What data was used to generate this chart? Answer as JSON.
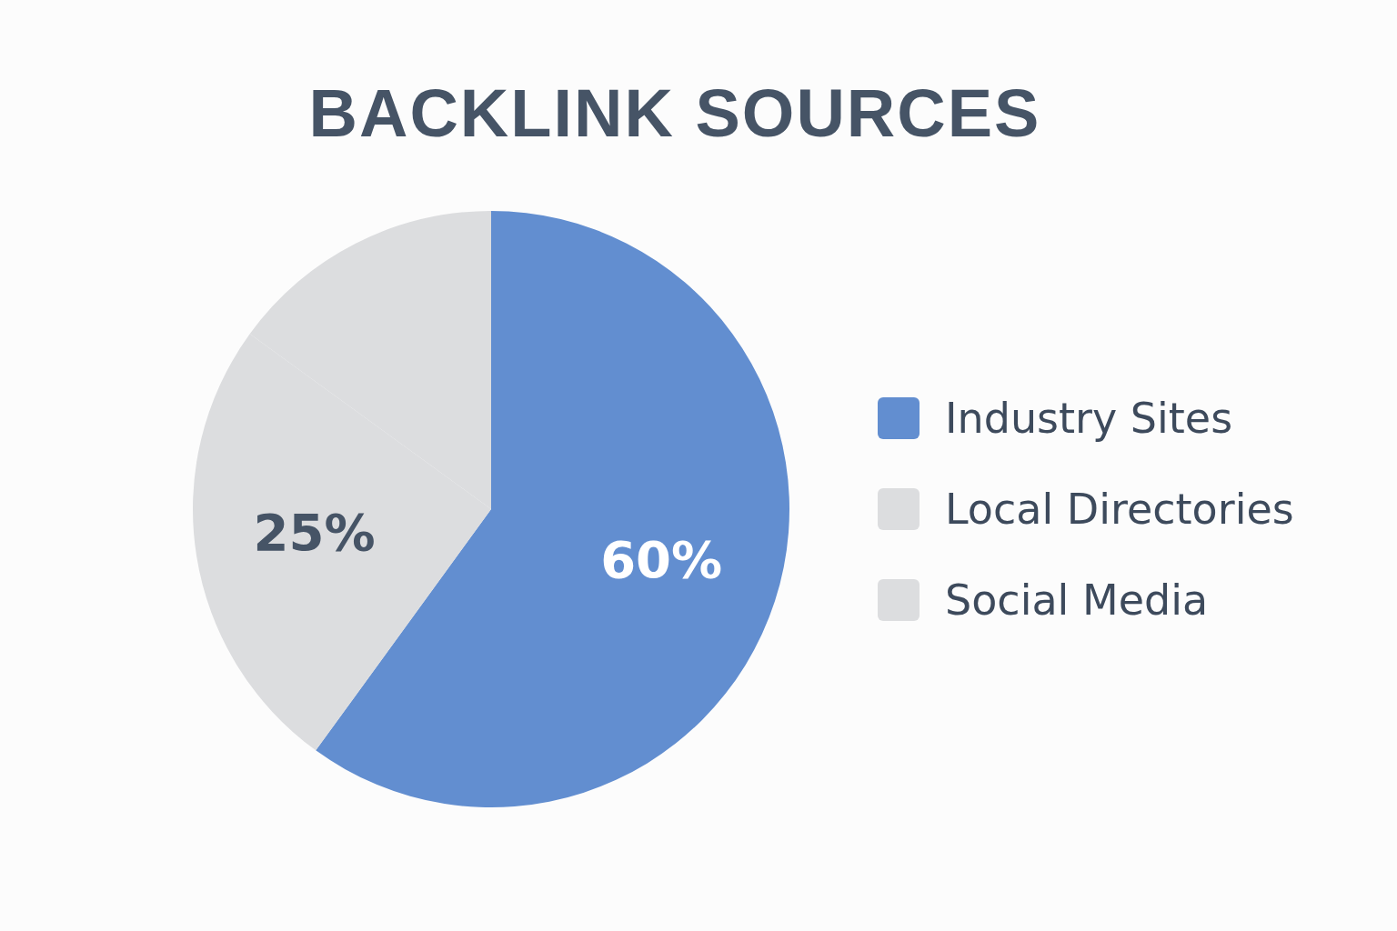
{
  "chart_data": {
    "type": "pie",
    "title": "BACKLINK SOURCES",
    "categories": [
      "Industry Sites",
      "Local Directories",
      "Social Media"
    ],
    "values": [
      60,
      25,
      15
    ],
    "colors": [
      "#628ed0",
      "#dcdddf",
      "#dcdddf"
    ],
    "value_labels": [
      "60%",
      "25%",
      null
    ],
    "legend": "right"
  }
}
